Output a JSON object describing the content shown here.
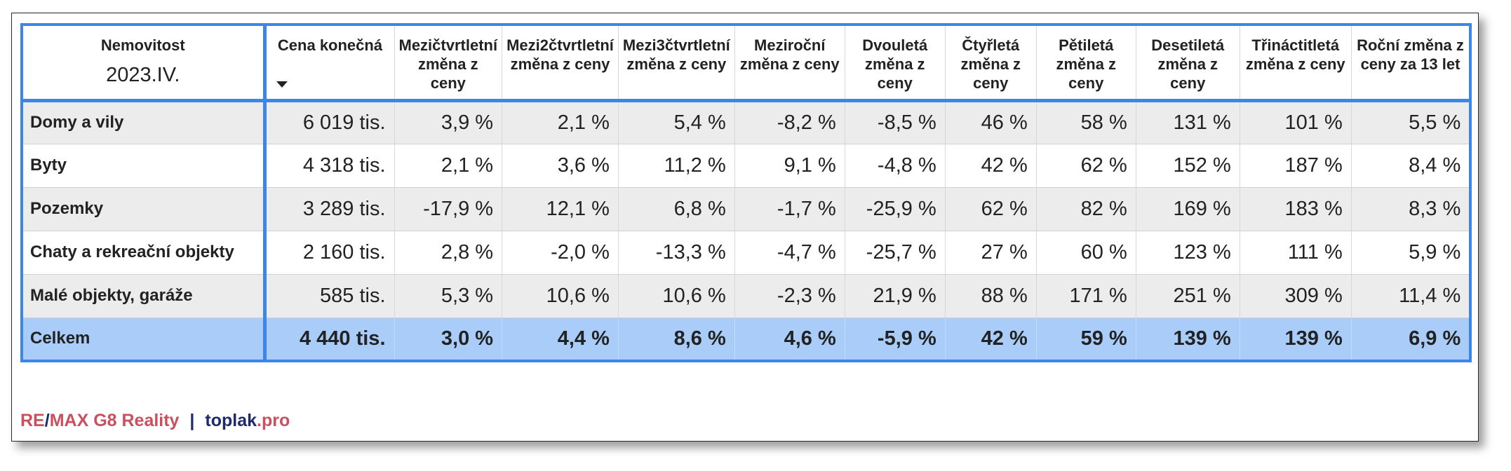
{
  "table": {
    "header": {
      "first_column_title": "Nemovitost",
      "period": "2023.IV.",
      "columns": [
        "Cena konečná",
        "Mezičtvrtletní změna z ceny",
        "Mezi2čtvrtletní změna z ceny",
        "Mezi3čtvrtletní změna z ceny",
        "Meziroční změna z ceny",
        "Dvouletá změna z ceny",
        "Čtyřletá změna z ceny",
        "Pětiletá změna z ceny",
        "Desetiletá změna z ceny",
        "Třináctitletá změna z ceny",
        "Roční změna z ceny za 13 let"
      ]
    },
    "rows": [
      {
        "label": "Domy a vily",
        "cells": [
          "6 019 tis.",
          "3,9 %",
          "2,1 %",
          "5,4 %",
          "-8,2 %",
          "-8,5 %",
          "46 %",
          "58 %",
          "131 %",
          "101 %",
          "5,5 %"
        ]
      },
      {
        "label": "Byty",
        "cells": [
          "4 318 tis.",
          "2,1 %",
          "3,6 %",
          "11,2 %",
          "9,1 %",
          "-4,8 %",
          "42 %",
          "62 %",
          "152 %",
          "187 %",
          "8,4 %"
        ]
      },
      {
        "label": "Pozemky",
        "cells": [
          "3 289 tis.",
          "-17,9 %",
          "12,1 %",
          "6,8 %",
          "-1,7 %",
          "-25,9 %",
          "62 %",
          "82 %",
          "169 %",
          "183 %",
          "8,3 %"
        ]
      },
      {
        "label": "Chaty a rekreační objekty",
        "cells": [
          "2 160 tis.",
          "2,8 %",
          "-2,0 %",
          "-13,3 %",
          "-4,7 %",
          "-25,7 %",
          "27 %",
          "60 %",
          "123 %",
          "111 %",
          "5,9 %"
        ]
      },
      {
        "label": "Malé objekty, garáže",
        "cells": [
          "585 tis.",
          "5,3 %",
          "10,6 %",
          "10,6 %",
          "-2,3 %",
          "21,9 %",
          "88 %",
          "171 %",
          "251 %",
          "309 %",
          "11,4 %"
        ]
      }
    ],
    "total": {
      "label": "Celkem",
      "cells": [
        "4 440 tis.",
        "3,0 %",
        "4,4 %",
        "8,6 %",
        "4,6 %",
        "-5,9 %",
        "42 %",
        "59 %",
        "139 %",
        "139 %",
        "6,9 %"
      ]
    }
  },
  "footer": {
    "re": "RE",
    "slash": "/",
    "max": "MAX G8 Reality",
    "separator": "|",
    "toplak": "toplak",
    "pro": ".pro"
  },
  "colors": {
    "accent_blue": "#3b86e8",
    "total_row": "#a9cdf8",
    "brand_red": "#c9505e",
    "brand_navy": "#1d2a6e"
  }
}
